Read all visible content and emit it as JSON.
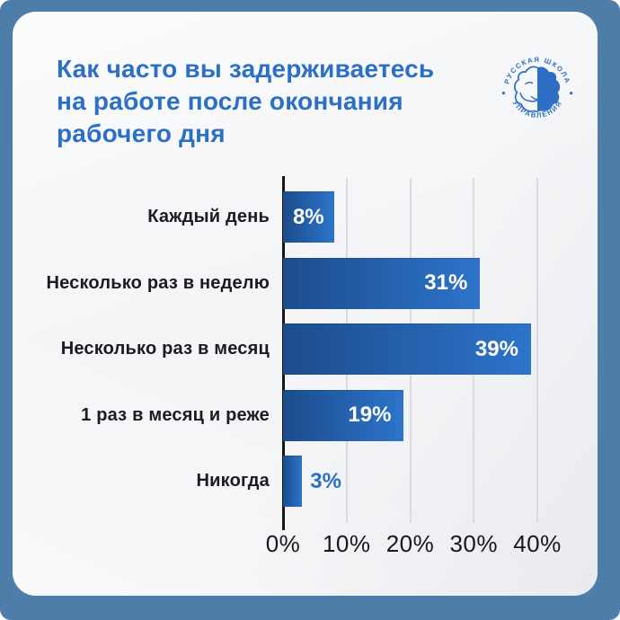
{
  "frame": {
    "background_color": "#4F7DA9",
    "card_background_color": "#F4F5F7"
  },
  "title": {
    "line1": "Как часто вы задерживаетесь",
    "line2": "на работе после окончания",
    "line3": "рабочего дня",
    "color": "#2B6FC8"
  },
  "logo": {
    "top_text": "РУССКАЯ ШКОЛА",
    "bottom_text": "УПРАВЛЕНИЯ",
    "color": "#2E6FC5"
  },
  "chart_data": {
    "type": "bar",
    "orientation": "horizontal",
    "title": "Как часто вы задерживаетесь на работе после окончания рабочего дня",
    "categories": [
      "Каждый день",
      "Несколько раз в неделю",
      "Несколько раз в месяц",
      "1 раз в месяц и реже",
      "Никогда"
    ],
    "values": [
      8,
      31,
      39,
      19,
      3
    ],
    "value_labels": [
      "8%",
      "31%",
      "39%",
      "19%",
      "3%"
    ],
    "x_ticks": [
      "0%",
      "10%",
      "20%",
      "30%",
      "40%"
    ],
    "xlim": [
      0,
      40
    ],
    "grid": true,
    "legend": "none",
    "bar_gradient": [
      "#1C4C8C",
      "#2D74CB"
    ],
    "value_label_inside_color": "#FFFFFF",
    "value_label_outside_color": "#2B6FC8",
    "outside_label_threshold": 5,
    "grid_color": "#DBDBDF",
    "axis_color": "#161617"
  }
}
